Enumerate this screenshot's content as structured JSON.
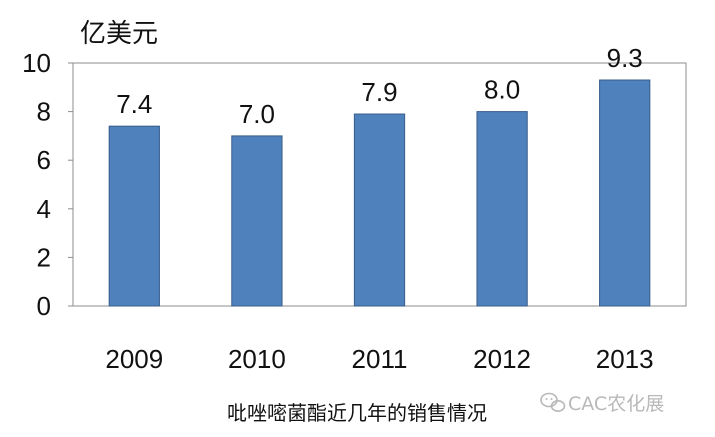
{
  "chart_data": {
    "type": "bar",
    "categories": [
      "2009",
      "2010",
      "2011",
      "2012",
      "2013"
    ],
    "values": [
      7.4,
      7.0,
      7.9,
      8.0,
      9.3
    ],
    "data_labels": [
      "7.4",
      "7.0",
      "7.9",
      "8.0",
      "9.3"
    ],
    "ylabel": "亿美元",
    "ylim": [
      0,
      10
    ],
    "yticks": [
      "0",
      "2",
      "4",
      "6",
      "8",
      "10"
    ],
    "grid": false,
    "bar_color": "#4F81BD",
    "bar_edge_color": "#385D8A",
    "title": ""
  },
  "caption": "吡唑嘧菌酯近几年的销售情况",
  "watermark": {
    "icon": "wechat-icon",
    "text": "CAC农化展"
  }
}
